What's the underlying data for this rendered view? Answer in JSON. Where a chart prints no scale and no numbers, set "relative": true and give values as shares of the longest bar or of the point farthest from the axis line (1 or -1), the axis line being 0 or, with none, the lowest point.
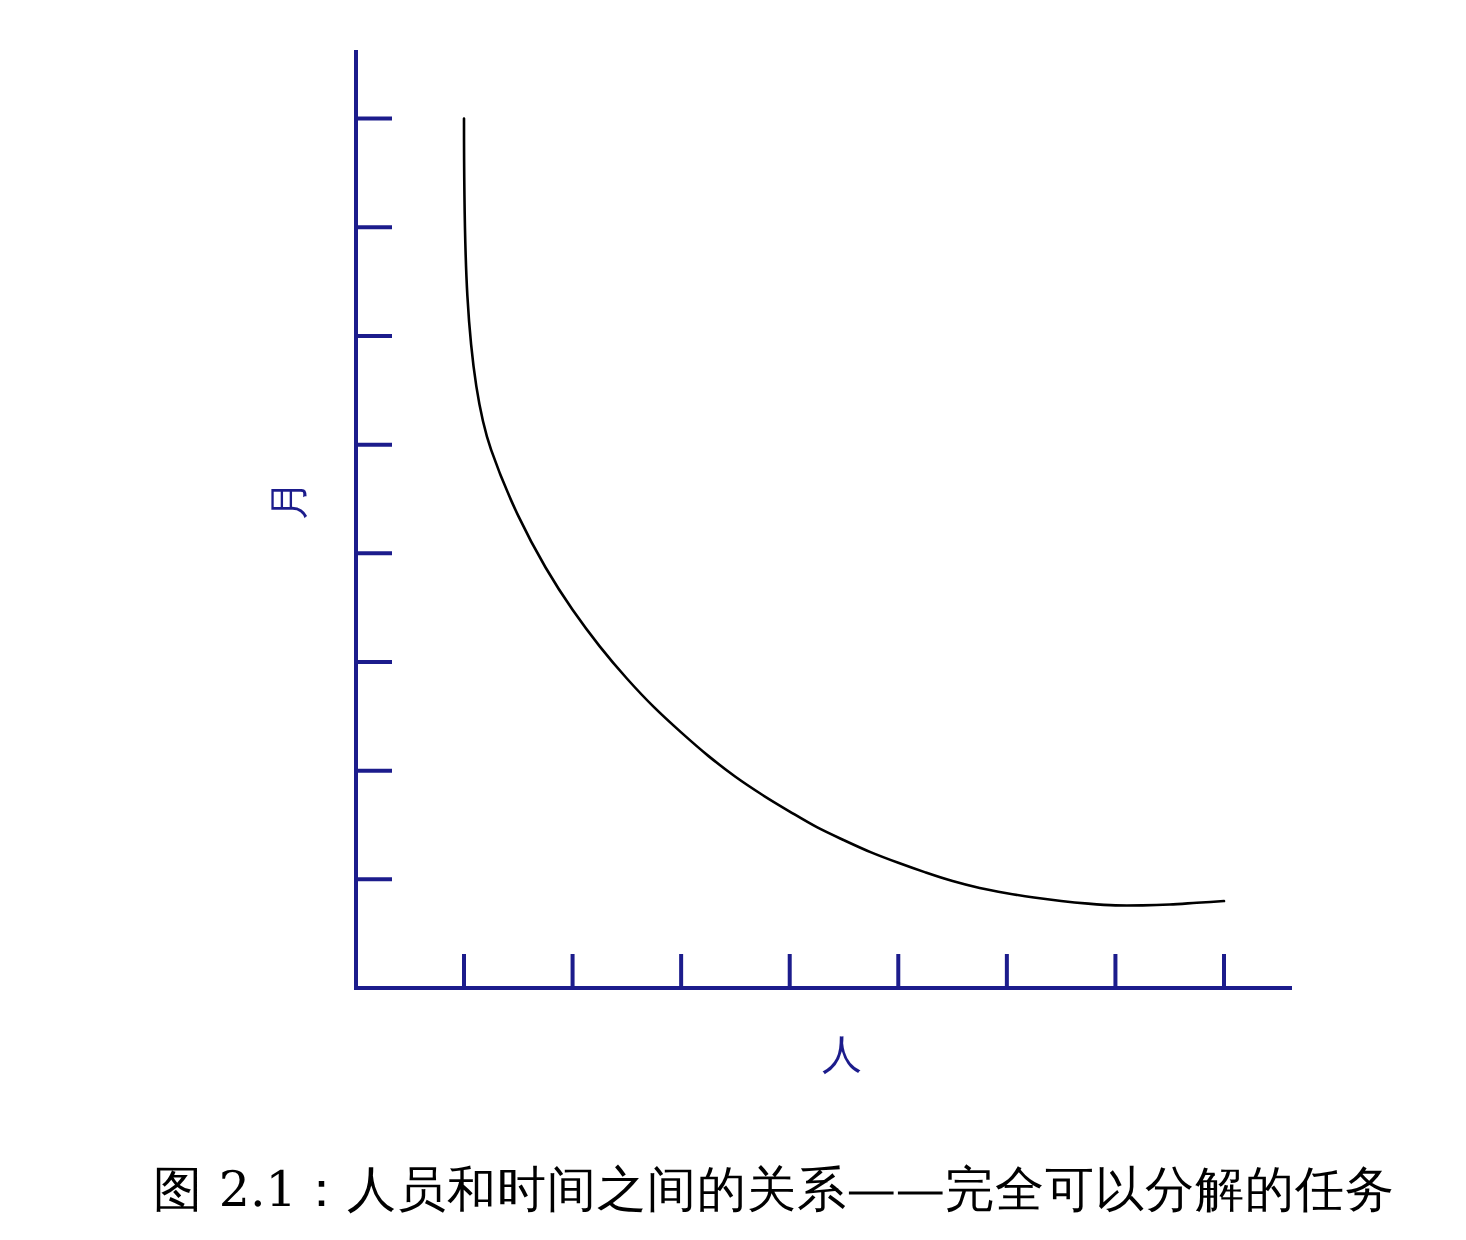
{
  "chart_data": {
    "type": "line",
    "relative": true,
    "xlabel": "人",
    "ylabel": "月",
    "annotations": [
      "图 2.1：人员和时间之间的关系——完全可以分解的任务"
    ],
    "categories": [
      null,
      null,
      null,
      null,
      null,
      null,
      null,
      null,
      null,
      null,
      null,
      null,
      null,
      null,
      null,
      null,
      null,
      null,
      null,
      null,
      null,
      null,
      null,
      null,
      null,
      null,
      null,
      null,
      null
    ],
    "series": [
      {
        "color": "#000000",
        "values": [
          1.0,
          0.619,
          0.543,
          0.484,
          0.435,
          0.393,
          0.356,
          0.323,
          0.294,
          0.267,
          0.243,
          0.222,
          0.203,
          0.185,
          0.17,
          0.156,
          0.144,
          0.133,
          0.123,
          0.115,
          0.109,
          0.104,
          0.1,
          0.097,
          0.095,
          0.095,
          0.096,
          0.098,
          0.1
        ]
      }
    ]
  }
}
